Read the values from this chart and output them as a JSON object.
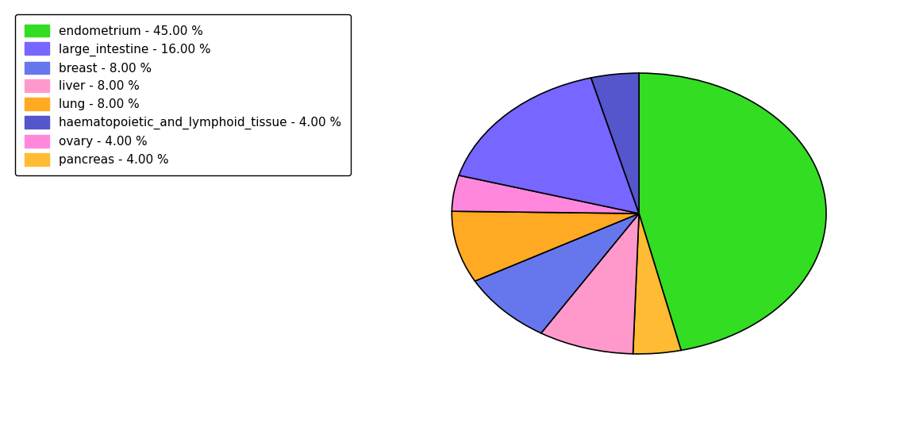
{
  "slice_order": [
    "endometrium",
    "pancreas",
    "liver",
    "breast",
    "lung",
    "ovary",
    "large_intestine",
    "haematopoietic_and_lymphoid_tissue"
  ],
  "slice_sizes": [
    45,
    4,
    8,
    8,
    8,
    4,
    16,
    4
  ],
  "slice_colors": [
    "#33dd22",
    "#ffbb33",
    "#ff99cc",
    "#6677ee",
    "#ffaa22",
    "#ff88dd",
    "#7766ff",
    "#5555cc"
  ],
  "legend_entries": [
    "endometrium - 45.00 %",
    "large_intestine - 16.00 %",
    "breast - 8.00 %",
    "liver - 8.00 %",
    "lung - 8.00 %",
    "haematopoietic_and_lymphoid_tissue - 4.00 %",
    "ovary - 4.00 %",
    "pancreas - 4.00 %"
  ],
  "legend_colors": [
    "#33dd22",
    "#7766ff",
    "#6677ee",
    "#ff99cc",
    "#ffaa22",
    "#5555cc",
    "#ff88dd",
    "#ffbb33"
  ],
  "startangle": 90,
  "figsize": [
    11.34,
    5.38
  ],
  "dpi": 100,
  "aspect_ratio": 0.75
}
